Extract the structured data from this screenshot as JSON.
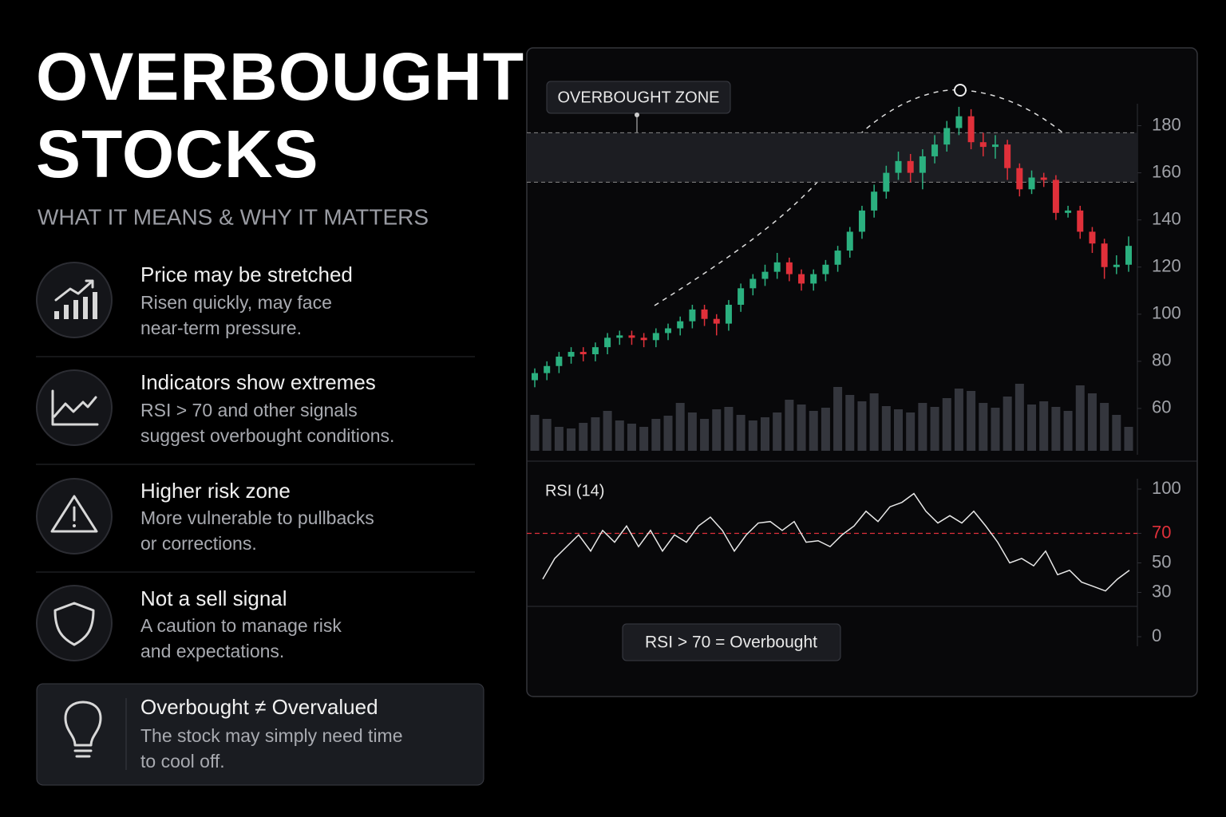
{
  "header": {
    "title_line1": "OVERBOUGHT",
    "title_line2": "STOCKS",
    "subtitle": "WHAT IT MEANS & WHY IT MATTERS"
  },
  "items": [
    {
      "title": "Price may be stretched",
      "text_line1": "Risen quickly, may face",
      "text_line2": "near-term pressure."
    },
    {
      "title": "Indicators show extremes",
      "text_line1": "RSI > 70 and other signals",
      "text_line2": "suggest overbought conditions."
    },
    {
      "title": "Higher risk zone",
      "text_line1": "More vulnerable to pullbacks",
      "text_line2": "or corrections."
    },
    {
      "title": "Not a sell signal",
      "text_line1": "A caution to manage risk",
      "text_line2": "and expectations."
    }
  ],
  "callout": {
    "title": "Overbought ≠ Overvalued",
    "text_line1": "The stock may simply need time",
    "text_line2": "to cool off."
  },
  "chart_data": [
    {
      "type": "candlestick",
      "zone_label": "OVERBOUGHT ZONE",
      "zone": [
        156,
        177
      ],
      "up_color": "#2bb07f",
      "down_color": "#e0303a",
      "open": [
        72,
        75,
        78,
        82,
        84,
        83,
        86,
        90,
        91,
        90,
        89,
        92,
        94,
        97,
        102,
        98,
        96,
        104,
        111,
        115,
        118,
        122,
        117,
        113,
        117,
        121,
        127,
        135,
        144,
        152,
        160,
        165,
        160,
        167,
        172,
        179,
        184,
        173,
        171,
        172,
        162,
        153,
        158,
        157,
        143,
        144,
        135,
        130,
        120,
        121
      ],
      "high": [
        77,
        80,
        84,
        86,
        86,
        88,
        92,
        93,
        93,
        92,
        94,
        96,
        99,
        104,
        104,
        100,
        106,
        113,
        117,
        121,
        126,
        124,
        119,
        119,
        123,
        129,
        137,
        146,
        155,
        163,
        169,
        168,
        170,
        176,
        182,
        188,
        187,
        177,
        176,
        174,
        164,
        161,
        160,
        159,
        146,
        146,
        137,
        132,
        125,
        133
      ],
      "low": [
        69,
        72,
        75,
        79,
        80,
        80,
        83,
        87,
        87,
        86,
        86,
        89,
        91,
        94,
        95,
        91,
        93,
        101,
        108,
        112,
        115,
        114,
        110,
        110,
        114,
        118,
        124,
        132,
        141,
        149,
        157,
        156,
        153,
        164,
        169,
        176,
        170,
        167,
        166,
        157,
        150,
        151,
        154,
        140,
        141,
        132,
        126,
        115,
        117,
        118
      ],
      "close": [
        75,
        78,
        82,
        84,
        83,
        86,
        90,
        91,
        90,
        89,
        92,
        94,
        97,
        102,
        98,
        96,
        104,
        111,
        115,
        118,
        122,
        117,
        113,
        117,
        121,
        127,
        135,
        144,
        152,
        160,
        165,
        160,
        167,
        172,
        179,
        184,
        173,
        171,
        172,
        162,
        153,
        158,
        157,
        143,
        144,
        135,
        130,
        120,
        121,
        129
      ],
      "volume": [
        45,
        40,
        30,
        28,
        35,
        42,
        50,
        38,
        34,
        30,
        40,
        44,
        60,
        48,
        40,
        52,
        55,
        45,
        38,
        42,
        48,
        64,
        58,
        50,
        54,
        80,
        70,
        62,
        72,
        56,
        52,
        48,
        60,
        55,
        66,
        78,
        75,
        60,
        54,
        68,
        84,
        58,
        62,
        55,
        50,
        82,
        72,
        60,
        45,
        30
      ],
      "volume_lim": [
        0,
        100
      ],
      "ylim": [
        40,
        190
      ],
      "yticks": [
        60,
        80,
        100,
        120,
        140,
        160,
        180
      ]
    },
    {
      "type": "line",
      "title": "RSI (14)",
      "color": "#e8e8e8",
      "values": [
        39,
        53,
        61,
        69,
        58,
        72,
        64,
        75,
        61,
        72,
        58,
        69,
        64,
        75,
        81,
        72,
        58,
        69,
        77,
        78,
        72,
        78,
        64,
        65,
        61,
        69,
        75,
        85,
        78,
        88,
        91,
        97,
        85,
        77,
        82,
        77,
        85,
        75,
        64,
        50,
        53,
        48,
        58,
        42,
        45,
        37,
        34,
        31,
        39,
        45
      ],
      "ylim": [
        0,
        100
      ],
      "yticks": [
        0,
        30,
        50,
        70,
        100
      ],
      "threshold": 70,
      "threshold_color": "#e0303a",
      "annotation": "RSI > 70 = Overbought"
    }
  ]
}
